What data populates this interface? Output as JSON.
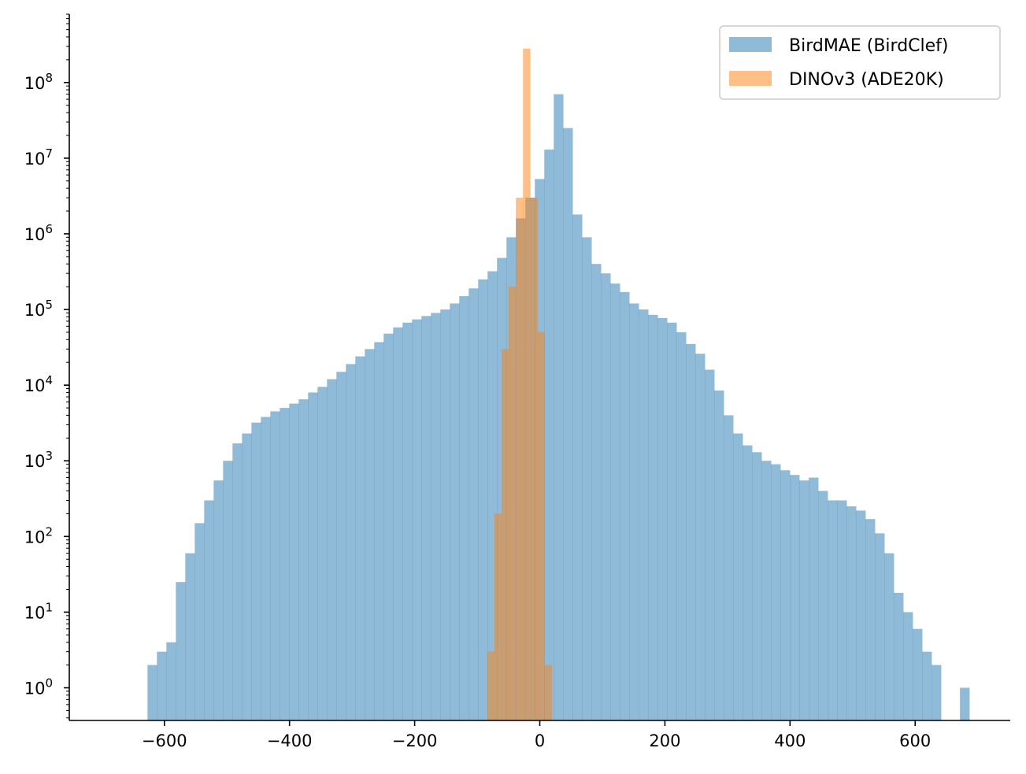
{
  "chart_data": {
    "type": "bar",
    "title": "",
    "xlabel": "",
    "ylabel": "",
    "y_scale": "log",
    "xlim": [
      -752,
      752
    ],
    "ylim": [
      0.37,
      800000000
    ],
    "grid": false,
    "legend_position": "top-right",
    "x_ticks": [
      {
        "value": -600,
        "label": "−600"
      },
      {
        "value": -400,
        "label": "−400"
      },
      {
        "value": -200,
        "label": "−200"
      },
      {
        "value": 0,
        "label": "0"
      },
      {
        "value": 200,
        "label": "200"
      },
      {
        "value": 400,
        "label": "400"
      },
      {
        "value": 600,
        "label": "600"
      }
    ],
    "y_ticks": [
      {
        "value": 1,
        "base": "10",
        "exp": "0"
      },
      {
        "value": 10,
        "base": "10",
        "exp": "1"
      },
      {
        "value": 100,
        "base": "10",
        "exp": "2"
      },
      {
        "value": 1000,
        "base": "10",
        "exp": "3"
      },
      {
        "value": 10000,
        "base": "10",
        "exp": "4"
      },
      {
        "value": 100000,
        "base": "10",
        "exp": "5"
      },
      {
        "value": 1000000,
        "base": "10",
        "exp": "6"
      },
      {
        "value": 10000000,
        "base": "10",
        "exp": "7"
      },
      {
        "value": 100000000,
        "base": "10",
        "exp": "8"
      }
    ],
    "series": [
      {
        "name": "BirdMAE (BirdClef)",
        "color": "#1f77b4",
        "alpha": 0.5,
        "bin_start": -627,
        "bin_width": 15.1,
        "counts": [
          2,
          3,
          4,
          25,
          60,
          150,
          300,
          550,
          1000,
          1700,
          2300,
          3200,
          3800,
          4500,
          5000,
          5700,
          6500,
          8000,
          9500,
          12000,
          15000,
          19000,
          24000,
          30000,
          37000,
          48000,
          58000,
          67000,
          74000,
          82000,
          90000,
          100000,
          120000,
          150000,
          190000,
          250000,
          320000,
          480000,
          900000,
          1600000,
          3000000,
          5300000,
          13000000,
          70000000,
          25000000,
          1800000,
          900000,
          400000,
          300000,
          220000,
          170000,
          120000,
          100000,
          85000,
          77000,
          67000,
          50000,
          35000,
          26000,
          16000,
          8500,
          4000,
          2300,
          1600,
          1300,
          1000,
          900,
          750,
          650,
          550,
          600,
          400,
          300,
          300,
          250,
          220,
          170,
          110,
          60,
          18,
          10,
          6,
          3,
          2,
          0,
          0,
          1
        ]
      },
      {
        "name": "DINOv3 (ADE20K)",
        "color": "#ff7f0e",
        "alpha": 0.5,
        "bin_start": -84,
        "bin_width": 11.45,
        "counts": [
          3,
          200,
          30000,
          200000,
          3000000,
          280000000,
          3000000,
          50000,
          2
        ]
      }
    ]
  }
}
